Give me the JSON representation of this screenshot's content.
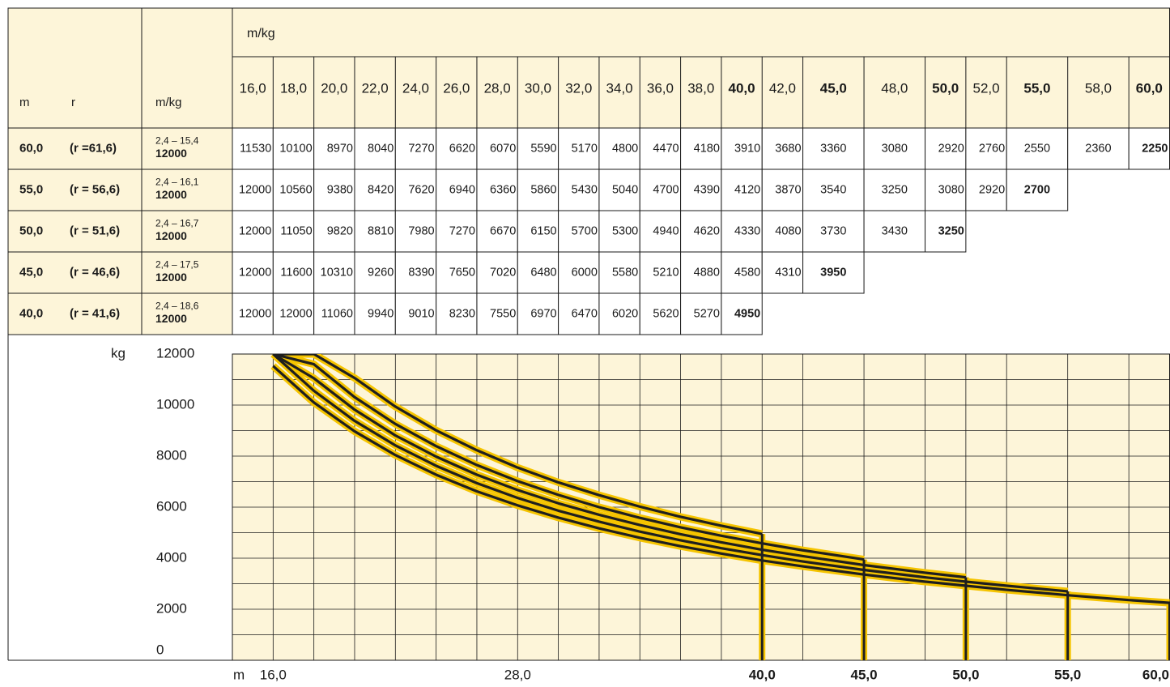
{
  "table": {
    "corner": {
      "m": "m",
      "r": "r",
      "unit": "m/kg"
    },
    "group_header": "m/kg",
    "radii": [
      "16,0",
      "18,0",
      "20,0",
      "22,0",
      "24,0",
      "26,0",
      "28,0",
      "30,0",
      "32,0",
      "34,0",
      "36,0",
      "38,0",
      "40,0",
      "42,0",
      "45,0",
      "48,0",
      "50,0",
      "52,0",
      "55,0",
      "58,0",
      "60,0"
    ],
    "rows": [
      {
        "m": "60,0",
        "r": "(r =61,6)",
        "range": "2,4 – 15,4",
        "max": "12000",
        "values": [
          11530,
          10100,
          8970,
          8040,
          7270,
          6620,
          6070,
          5590,
          5170,
          4800,
          4470,
          4180,
          3910,
          3680,
          3360,
          3080,
          2920,
          2760,
          2550,
          2360,
          2250
        ]
      },
      {
        "m": "55,0",
        "r": "(r = 56,6)",
        "range": "2,4 – 16,1",
        "max": "12000",
        "values": [
          12000,
          10560,
          9380,
          8420,
          7620,
          6940,
          6360,
          5860,
          5430,
          5040,
          4700,
          4390,
          4120,
          3870,
          3540,
          3250,
          3080,
          2920,
          2700
        ]
      },
      {
        "m": "50,0",
        "r": "(r = 51,6)",
        "range": "2,4 – 16,7",
        "max": "12000",
        "values": [
          12000,
          11050,
          9820,
          8810,
          7980,
          7270,
          6670,
          6150,
          5700,
          5300,
          4940,
          4620,
          4330,
          4080,
          3730,
          3430,
          3250
        ]
      },
      {
        "m": "45,0",
        "r": "(r = 46,6)",
        "range": "2,4 – 17,5",
        "max": "12000",
        "values": [
          12000,
          11600,
          10310,
          9260,
          8390,
          7650,
          7020,
          6480,
          6000,
          5580,
          5210,
          4880,
          4580,
          4310,
          3950
        ]
      },
      {
        "m": "40,0",
        "r": "(r = 41,6)",
        "range": "2,4 – 18,6",
        "max": "12000",
        "values": [
          12000,
          12000,
          11060,
          9940,
          9010,
          8230,
          7550,
          6970,
          6470,
          6020,
          5620,
          5270,
          4950
        ]
      }
    ]
  },
  "chart_data": {
    "type": "line",
    "y_label": "kg",
    "x_label": "m",
    "x": [
      16,
      18,
      20,
      22,
      24,
      26,
      28,
      30,
      32,
      34,
      36,
      38,
      40,
      42,
      45,
      48,
      50,
      52,
      55,
      58,
      60
    ],
    "xlim": [
      14,
      60
    ],
    "xticks": [
      {
        "value": 16,
        "label": "16,0"
      },
      {
        "value": 28,
        "label": "28,0"
      },
      {
        "value": 40,
        "label": "40,0"
      },
      {
        "value": 45,
        "label": "45,0"
      },
      {
        "value": 50,
        "label": "50,0"
      },
      {
        "value": 55,
        "label": "55,0"
      },
      {
        "value": 60,
        "label": "60,0"
      }
    ],
    "ylim": [
      0,
      12000
    ],
    "yticks": [
      0,
      2000,
      4000,
      6000,
      8000,
      10000,
      12000
    ],
    "line_color": "#1f1f1f",
    "outline_color": "#f5c400",
    "grid": true
  }
}
